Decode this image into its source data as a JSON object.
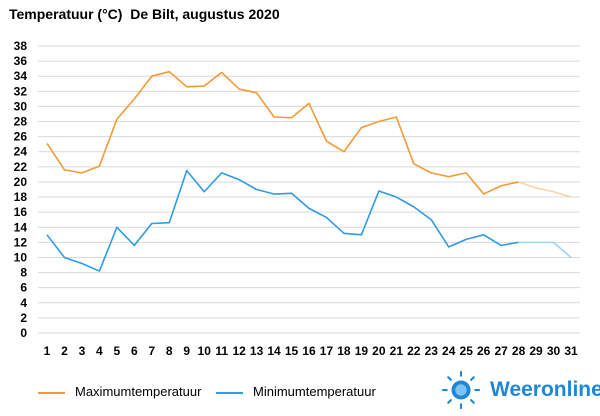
{
  "header": {
    "title": "Temperatuur (°C)  De Bilt, augustus 2020"
  },
  "brand": {
    "name": "Weeronline",
    "logo_icon": "sun-logo-icon",
    "color": "#1e88d6"
  },
  "chart_data": {
    "type": "line",
    "title": "Temperatuur (°C)  De Bilt, augustus 2020",
    "x": [
      1,
      2,
      3,
      4,
      5,
      6,
      7,
      8,
      9,
      10,
      11,
      12,
      13,
      14,
      15,
      16,
      17,
      18,
      19,
      20,
      21,
      22,
      23,
      24,
      25,
      26,
      27,
      28,
      29,
      30,
      31
    ],
    "x_tick_labels": [
      "1",
      "2",
      "3",
      "4",
      "5",
      "6",
      "7",
      "8",
      "9",
      "10",
      "11",
      "12",
      "13",
      "14",
      "15",
      "16",
      "17",
      "18",
      "19",
      "20",
      "21",
      "22",
      "23",
      "24",
      "25",
      "26",
      "27",
      "28",
      "29",
      "30",
      "31"
    ],
    "y_ticks": [
      0,
      2,
      4,
      6,
      8,
      10,
      12,
      14,
      16,
      18,
      20,
      22,
      24,
      26,
      28,
      30,
      32,
      34,
      36,
      38
    ],
    "ylim": [
      0,
      38
    ],
    "xlabel": "",
    "ylabel": "",
    "grid": true,
    "legend": "bottom-left",
    "forecast_from_day": 28,
    "series": [
      {
        "name": "Maximumtemperatuur",
        "color": "#f39a38",
        "forecast_color": "#f9d3a8",
        "values": [
          25.1,
          21.6,
          21.2,
          22.1,
          28.3,
          31.0,
          34.0,
          34.6,
          32.6,
          32.7,
          34.5,
          32.3,
          31.8,
          28.6,
          28.5,
          30.4,
          25.4,
          24.0,
          27.2,
          28.0,
          28.6,
          22.4,
          21.2,
          20.7,
          21.2,
          18.4,
          19.5,
          20.0,
          19.2,
          18.7,
          18.0
        ]
      },
      {
        "name": "Minimumtemperatuur",
        "color": "#2e9be3",
        "forecast_color": "#9fd3f3",
        "values": [
          13.0,
          10.0,
          9.2,
          8.2,
          14.0,
          11.6,
          14.5,
          14.6,
          21.5,
          18.7,
          21.2,
          20.3,
          19.0,
          18.4,
          18.5,
          16.5,
          15.3,
          13.2,
          13.0,
          18.8,
          18.0,
          16.7,
          15.0,
          11.4,
          12.4,
          13.0,
          11.6,
          12.0,
          12.0,
          12.0,
          10.0
        ]
      }
    ]
  }
}
